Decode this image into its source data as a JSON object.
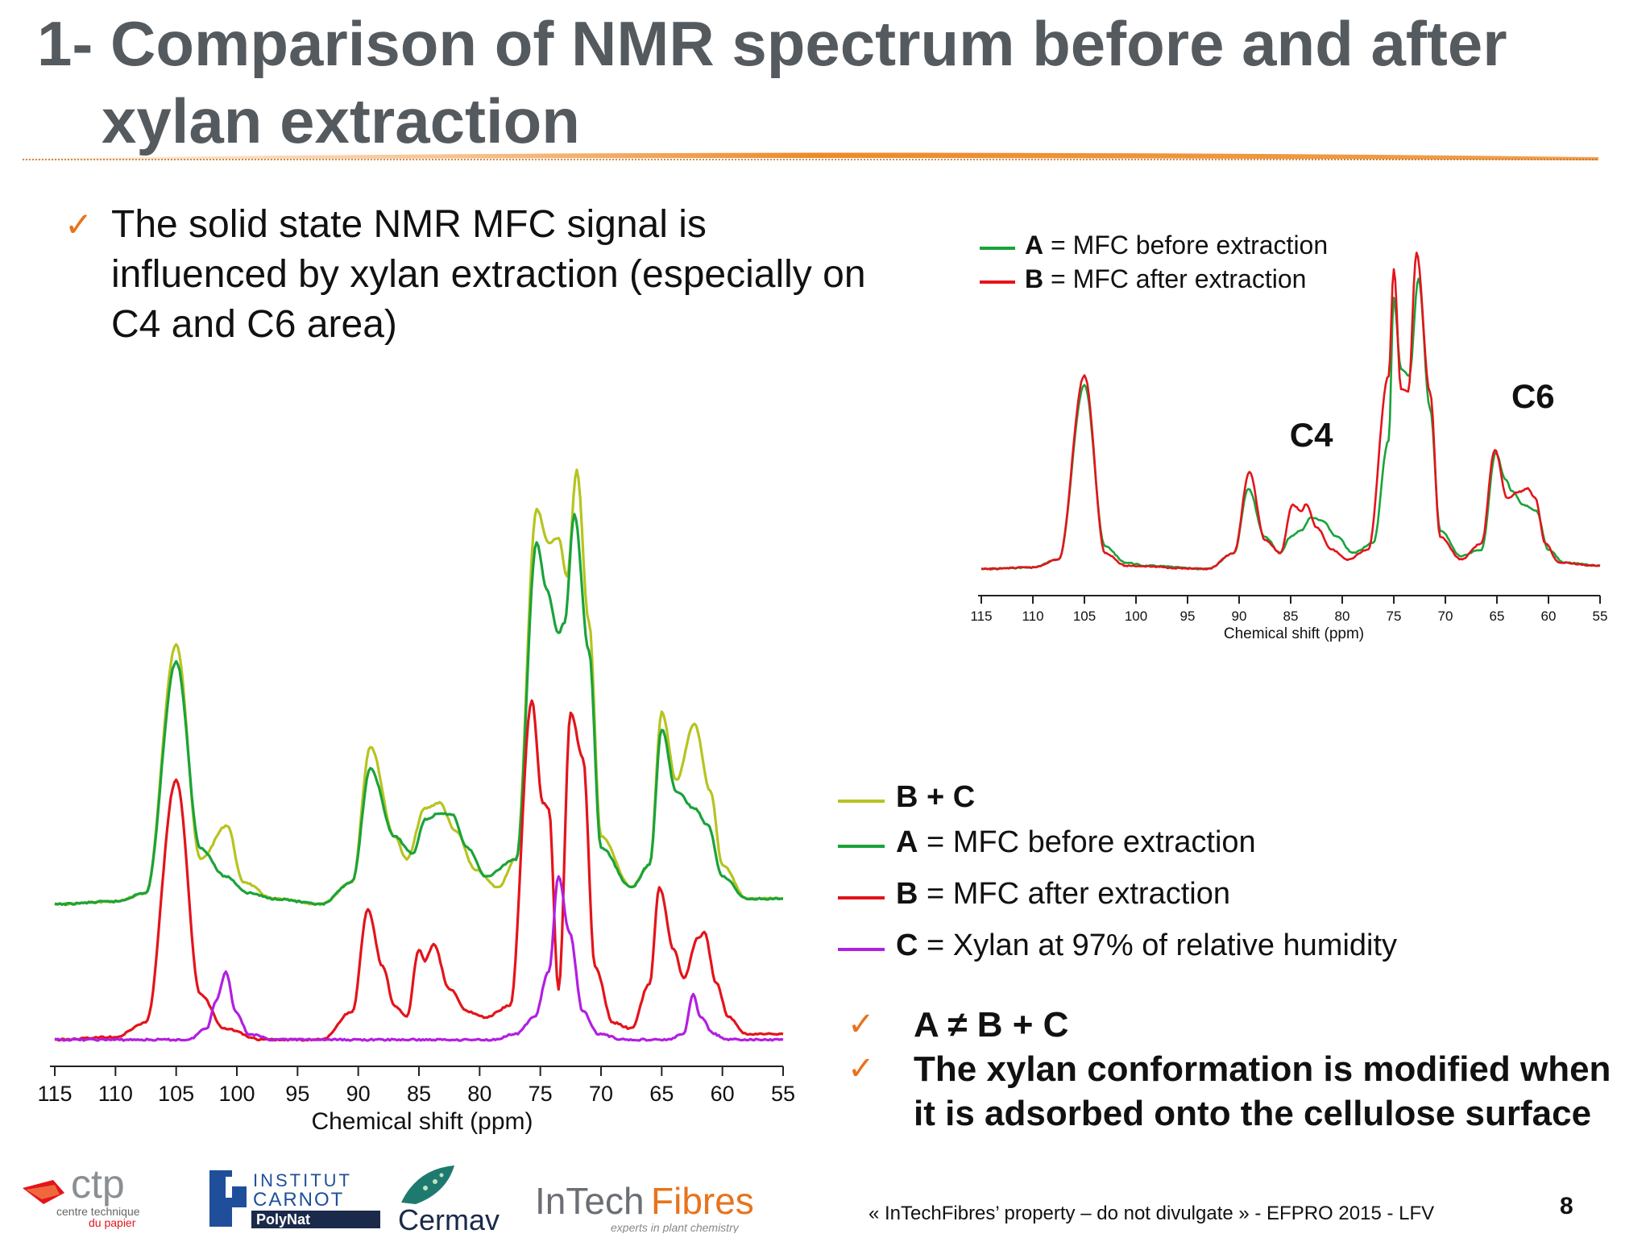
{
  "slide": {
    "title_line1": "1- Comparison of NMR spectrum before and after",
    "title_line2": "xylan extraction",
    "bullet": "The  solid state NMR MFC signal is influenced by xylan extraction (especially on C4 and C6 area)",
    "legend_main": [
      {
        "key": "B + C",
        "rest": ""
      },
      {
        "key": "A",
        "rest": " = MFC before extraction"
      },
      {
        "key": "B",
        "rest": " = MFC after extraction"
      },
      {
        "key": "C",
        "rest": " = Xylan at 97% of relative humidity"
      }
    ],
    "legend_small": [
      {
        "key": "A",
        "rest": " = MFC before extraction"
      },
      {
        "key": "B",
        "rest": " = MFC after extraction"
      }
    ],
    "conclusions": [
      "A ≠ B + C",
      "The xylan conformation is modified when it is adsorbed onto the cellulose surface"
    ],
    "footer": "« InTechFibres’ property – do not divulgate »   - EFPRO 2015 - LFV",
    "page_number": "8",
    "check_mark": "✓",
    "logos": {
      "ctp": "ctp",
      "ctp_sub1": "centre technique",
      "ctp_sub2": "du papier",
      "carnot1": "INSTITUT",
      "carnot2": "CARNOT",
      "carnot3": "PolyNat",
      "cermav": "Cermav",
      "intech": "InTech",
      "fibres": "Fibres",
      "intech_sub": "experts in plant chemistry"
    }
  },
  "colors": {
    "A": "#1aa33a",
    "B": "#e3141b",
    "C": "#b21fe0",
    "BC": "#b6c41f",
    "accent": "#e8731c",
    "title": "#555a5f"
  },
  "chart_data": [
    {
      "id": "main",
      "type": "line",
      "xlabel": "Chemical shift (ppm)",
      "xlim": [
        115,
        55
      ],
      "x_reversed": true,
      "ylim": [
        0,
        1
      ],
      "ticks": [
        115,
        110,
        105,
        100,
        95,
        90,
        85,
        80,
        75,
        70,
        65,
        60,
        55
      ],
      "series": [
        {
          "name": "B + C",
          "color_key": "BC",
          "baseline": 0.24,
          "points": [
            [
              115,
              0
            ],
            [
              110,
              0.005
            ],
            [
              107.5,
              0.02
            ],
            [
              105,
              0.46
            ],
            [
              103,
              0.08
            ],
            [
              100.8,
              0.14
            ],
            [
              99.5,
              0.04
            ],
            [
              97,
              0.01
            ],
            [
              93,
              0
            ],
            [
              90.5,
              0.04
            ],
            [
              89,
              0.28
            ],
            [
              87,
              0.12
            ],
            [
              86,
              0.08
            ],
            [
              84.5,
              0.17
            ],
            [
              83.3,
              0.18
            ],
            [
              82,
              0.13
            ],
            [
              80.3,
              0.06
            ],
            [
              78.5,
              0.03
            ],
            [
              77,
              0.08
            ],
            [
              75.3,
              0.7
            ],
            [
              74.3,
              0.64
            ],
            [
              73.5,
              0.65
            ],
            [
              72.8,
              0.58
            ],
            [
              72,
              0.77
            ],
            [
              71,
              0.5
            ],
            [
              70,
              0.12
            ],
            [
              67.5,
              0.03
            ],
            [
              66,
              0.07
            ],
            [
              65,
              0.34
            ],
            [
              63.8,
              0.22
            ],
            [
              62.3,
              0.32
            ],
            [
              61,
              0.2
            ],
            [
              60,
              0.07
            ],
            [
              58,
              0.01
            ],
            [
              55,
              0.01
            ]
          ]
        },
        {
          "name": "A = MFC before extraction",
          "color_key": "A",
          "baseline": 0.24,
          "points": [
            [
              115,
              0
            ],
            [
              110,
              0.005
            ],
            [
              107.5,
              0.02
            ],
            [
              105,
              0.43
            ],
            [
              103,
              0.1
            ],
            [
              101,
              0.05
            ],
            [
              99,
              0.02
            ],
            [
              97,
              0.01
            ],
            [
              93,
              0
            ],
            [
              90.5,
              0.04
            ],
            [
              89,
              0.24
            ],
            [
              87,
              0.12
            ],
            [
              85.5,
              0.09
            ],
            [
              84.5,
              0.15
            ],
            [
              83.4,
              0.16
            ],
            [
              82.3,
              0.16
            ],
            [
              81,
              0.1
            ],
            [
              79.5,
              0.05
            ],
            [
              77,
              0.08
            ],
            [
              75.3,
              0.64
            ],
            [
              74.5,
              0.56
            ],
            [
              73.5,
              0.48
            ],
            [
              73,
              0.5
            ],
            [
              72.2,
              0.69
            ],
            [
              71,
              0.45
            ],
            [
              70,
              0.1
            ],
            [
              67.5,
              0.03
            ],
            [
              66,
              0.07
            ],
            [
              65,
              0.31
            ],
            [
              63.8,
              0.2
            ],
            [
              62.3,
              0.17
            ],
            [
              61.2,
              0.14
            ],
            [
              60,
              0.05
            ],
            [
              58,
              0.01
            ],
            [
              55,
              0.01
            ]
          ]
        },
        {
          "name": "B = MFC after extraction",
          "color_key": "B",
          "baseline": 0,
          "points": [
            [
              115,
              0
            ],
            [
              110,
              0.005
            ],
            [
              107.5,
              0.03
            ],
            [
              105,
              0.46
            ],
            [
              103,
              0.08
            ],
            [
              101,
              0.02
            ],
            [
              98,
              0
            ],
            [
              93,
              0
            ],
            [
              90.5,
              0.05
            ],
            [
              89.2,
              0.23
            ],
            [
              88,
              0.13
            ],
            [
              87,
              0.06
            ],
            [
              86,
              0.04
            ],
            [
              85,
              0.16
            ],
            [
              84.5,
              0.14
            ],
            [
              83.8,
              0.17
            ],
            [
              82.5,
              0.09
            ],
            [
              81,
              0.05
            ],
            [
              79.5,
              0.04
            ],
            [
              77.5,
              0.06
            ],
            [
              75.7,
              0.6
            ],
            [
              74.8,
              0.42
            ],
            [
              74.3,
              0.41
            ],
            [
              73.5,
              0.09
            ],
            [
              72.5,
              0.58
            ],
            [
              71.5,
              0.5
            ],
            [
              70.5,
              0.13
            ],
            [
              69,
              0.03
            ],
            [
              67.5,
              0.02
            ],
            [
              66,
              0.1
            ],
            [
              65.2,
              0.27
            ],
            [
              64,
              0.16
            ],
            [
              63.2,
              0.11
            ],
            [
              62,
              0.18
            ],
            [
              61.5,
              0.19
            ],
            [
              60.5,
              0.1
            ],
            [
              59.5,
              0.04
            ],
            [
              58,
              0.01
            ],
            [
              55,
              0.01
            ]
          ]
        },
        {
          "name": "C = Xylan at 97% of relative humidity",
          "color_key": "C",
          "baseline": 0,
          "points": [
            [
              115,
              0
            ],
            [
              104,
              0
            ],
            [
              102.5,
              0.02
            ],
            [
              101.7,
              0.07
            ],
            [
              100.9,
              0.12
            ],
            [
              100.1,
              0.05
            ],
            [
              99,
              0.01
            ],
            [
              97,
              0
            ],
            [
              79,
              0
            ],
            [
              77,
              0.01
            ],
            [
              75.5,
              0.04
            ],
            [
              74.3,
              0.12
            ],
            [
              73.5,
              0.29
            ],
            [
              72.6,
              0.19
            ],
            [
              71.5,
              0.05
            ],
            [
              70.2,
              0.01
            ],
            [
              68,
              0
            ],
            [
              64.5,
              0
            ],
            [
              63.2,
              0.01
            ],
            [
              62.4,
              0.08
            ],
            [
              61.8,
              0.04
            ],
            [
              60.7,
              0.01
            ],
            [
              59.5,
              0
            ],
            [
              55,
              0
            ]
          ]
        }
      ]
    },
    {
      "id": "inset",
      "type": "line",
      "xlabel": "Chemical shift (ppm)",
      "xlim": [
        115,
        55
      ],
      "x_reversed": true,
      "ylim": [
        0,
        1
      ],
      "ticks": [
        115,
        110,
        105,
        100,
        95,
        90,
        85,
        80,
        75,
        70,
        65,
        60,
        55
      ],
      "annotations": [
        {
          "text": "C4",
          "x": 83,
          "y": 0.38
        },
        {
          "text": "C6",
          "x": 61.5,
          "y": 0.5
        }
      ],
      "series": [
        {
          "name": "A = MFC before extraction",
          "color_key": "A",
          "baseline": 0,
          "points": [
            [
              115,
              0
            ],
            [
              110,
              0.005
            ],
            [
              107.5,
              0.03
            ],
            [
              105,
              0.57
            ],
            [
              103,
              0.07
            ],
            [
              101,
              0.02
            ],
            [
              99,
              0.01
            ],
            [
              93,
              0
            ],
            [
              90.5,
              0.05
            ],
            [
              89.1,
              0.25
            ],
            [
              87.5,
              0.1
            ],
            [
              86,
              0.05
            ],
            [
              85,
              0.1
            ],
            [
              84,
              0.12
            ],
            [
              83,
              0.16
            ],
            [
              82,
              0.15
            ],
            [
              80.5,
              0.1
            ],
            [
              79,
              0.05
            ],
            [
              77,
              0.08
            ],
            [
              75.5,
              0.4
            ],
            [
              75,
              0.84
            ],
            [
              74.3,
              0.62
            ],
            [
              73.5,
              0.6
            ],
            [
              72.6,
              0.9
            ],
            [
              71.5,
              0.5
            ],
            [
              70.5,
              0.12
            ],
            [
              68.5,
              0.04
            ],
            [
              66.5,
              0.06
            ],
            [
              65.1,
              0.36
            ],
            [
              64.2,
              0.28
            ],
            [
              63.5,
              0.24
            ],
            [
              62.5,
              0.2
            ],
            [
              61.2,
              0.18
            ],
            [
              60,
              0.06
            ],
            [
              58.5,
              0.02
            ],
            [
              55,
              0.01
            ]
          ]
        },
        {
          "name": "B = MFC after extraction",
          "color_key": "B",
          "baseline": 0,
          "points": [
            [
              115,
              0
            ],
            [
              110,
              0.005
            ],
            [
              107.5,
              0.03
            ],
            [
              105,
              0.6
            ],
            [
              103,
              0.05
            ],
            [
              101,
              0.01
            ],
            [
              93,
              0
            ],
            [
              90.5,
              0.05
            ],
            [
              89,
              0.3
            ],
            [
              87.5,
              0.09
            ],
            [
              86,
              0.05
            ],
            [
              84.8,
              0.2
            ],
            [
              84,
              0.18
            ],
            [
              83.5,
              0.2
            ],
            [
              82.5,
              0.13
            ],
            [
              81,
              0.06
            ],
            [
              79.5,
              0.03
            ],
            [
              77.5,
              0.06
            ],
            [
              75.5,
              0.6
            ],
            [
              75,
              0.93
            ],
            [
              74.3,
              0.56
            ],
            [
              73.6,
              0.55
            ],
            [
              72.8,
              0.98
            ],
            [
              71.5,
              0.55
            ],
            [
              70.5,
              0.1
            ],
            [
              68.5,
              0.03
            ],
            [
              66.5,
              0.08
            ],
            [
              65.2,
              0.37
            ],
            [
              64,
              0.22
            ],
            [
              62.8,
              0.24
            ],
            [
              62,
              0.25
            ],
            [
              61.3,
              0.22
            ],
            [
              60.3,
              0.08
            ],
            [
              59,
              0.02
            ],
            [
              55,
              0.01
            ]
          ]
        }
      ]
    }
  ]
}
